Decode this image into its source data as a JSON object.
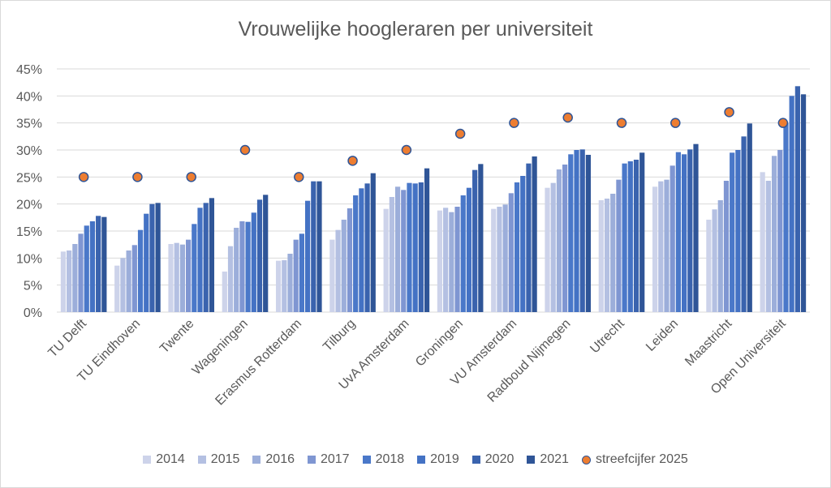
{
  "chart_data": {
    "type": "bar",
    "title": "Vrouwelijke hoogleraren per universiteit",
    "xlabel": "",
    "ylabel": "",
    "ylim": [
      0,
      45
    ],
    "yticks": [
      "0%",
      "5%",
      "10%",
      "15%",
      "20%",
      "25%",
      "30%",
      "35%",
      "40%",
      "45%"
    ],
    "ytick_values": [
      0,
      5,
      10,
      15,
      20,
      25,
      30,
      35,
      40,
      45
    ],
    "grid": true,
    "legend_position": "bottom",
    "categories": [
      "TU Delft",
      "TU Eindhoven",
      "Twente",
      "Wageningen",
      "Erasmus Rotterdam",
      "Tilburg",
      "UvA Amsterdam",
      "Groningen",
      "VU Amsterdam",
      "Radboud Nijmegen",
      "Utrecht",
      "Leiden",
      "Maastricht",
      "Open Universiteit"
    ],
    "series": [
      {
        "name": "2014",
        "color": "#CDD3EA",
        "values": [
          11.2,
          8.6,
          12.6,
          7.5,
          9.5,
          13.4,
          19.1,
          18.8,
          19.1,
          23.0,
          20.7,
          23.2,
          17.1,
          25.9
        ]
      },
      {
        "name": "2015",
        "color": "#B4C0E2",
        "values": [
          11.4,
          10.0,
          12.8,
          12.2,
          9.6,
          15.2,
          21.3,
          19.3,
          19.5,
          23.9,
          21.0,
          24.2,
          19.0,
          24.3
        ]
      },
      {
        "name": "2016",
        "color": "#9CAEDA",
        "values": [
          12.6,
          11.4,
          12.5,
          15.6,
          10.8,
          17.1,
          23.2,
          18.5,
          19.9,
          26.4,
          21.9,
          24.5,
          20.7,
          28.9
        ]
      },
      {
        "name": "2017",
        "color": "#7F96D2",
        "values": [
          14.5,
          12.4,
          13.4,
          16.8,
          13.4,
          19.2,
          22.6,
          19.5,
          22.0,
          27.3,
          24.5,
          27.1,
          24.3,
          30.0
        ]
      },
      {
        "name": "2018",
        "color": "#4A78C9",
        "values": [
          16.0,
          15.2,
          16.3,
          16.7,
          14.5,
          21.6,
          23.9,
          21.6,
          24.0,
          29.2,
          27.5,
          29.6,
          29.5,
          35.0
        ]
      },
      {
        "name": "2019",
        "color": "#4472C4",
        "values": [
          16.8,
          18.2,
          19.3,
          18.4,
          20.6,
          22.9,
          23.8,
          23.0,
          25.2,
          30.0,
          27.9,
          29.2,
          30.0,
          40.0
        ]
      },
      {
        "name": "2020",
        "color": "#3A63AE",
        "values": [
          17.8,
          20.0,
          20.2,
          20.8,
          24.2,
          23.8,
          24.0,
          26.3,
          27.5,
          30.1,
          28.2,
          30.1,
          32.5,
          41.8
        ]
      },
      {
        "name": "2021",
        "color": "#2F5597",
        "values": [
          17.6,
          20.2,
          21.1,
          21.7,
          24.2,
          25.7,
          26.6,
          27.4,
          28.8,
          29.1,
          29.5,
          31.1,
          34.9,
          40.3
        ]
      }
    ],
    "markers": {
      "name": "streefcijfer 2025",
      "fill": "#ED7D31",
      "stroke": "#2F5597",
      "values": [
        25,
        25,
        25,
        30,
        25,
        28,
        30,
        33,
        35,
        36,
        35,
        35,
        37,
        35
      ]
    }
  }
}
